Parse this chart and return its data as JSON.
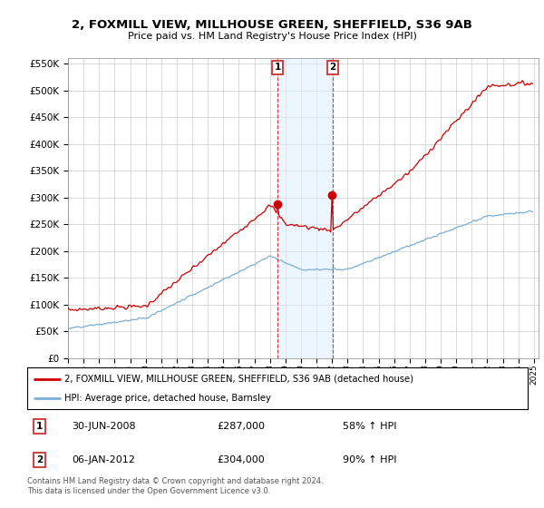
{
  "title": "2, FOXMILL VIEW, MILLHOUSE GREEN, SHEFFIELD, S36 9AB",
  "subtitle": "Price paid vs. HM Land Registry's House Price Index (HPI)",
  "legend_line1": "2, FOXMILL VIEW, MILLHOUSE GREEN, SHEFFIELD, S36 9AB (detached house)",
  "legend_line2": "HPI: Average price, detached house, Barnsley",
  "transaction1_date": "30-JUN-2008",
  "transaction1_price": 287000,
  "transaction1_pct": "58% ↑ HPI",
  "transaction2_date": "06-JAN-2012",
  "transaction2_price": 304000,
  "transaction2_pct": "90% ↑ HPI",
  "footer": "Contains HM Land Registry data © Crown copyright and database right 2024.\nThis data is licensed under the Open Government Licence v3.0.",
  "ylim": [
    0,
    560000
  ],
  "yticks": [
    0,
    50000,
    100000,
    150000,
    200000,
    250000,
    300000,
    350000,
    400000,
    450000,
    500000,
    550000
  ],
  "red_color": "#cc0000",
  "blue_color": "#7aaed6",
  "shade_color": "#ddeeff",
  "marker_box_color": "#cc3333",
  "t1_year": 2008.5,
  "t2_year": 2012.04
}
